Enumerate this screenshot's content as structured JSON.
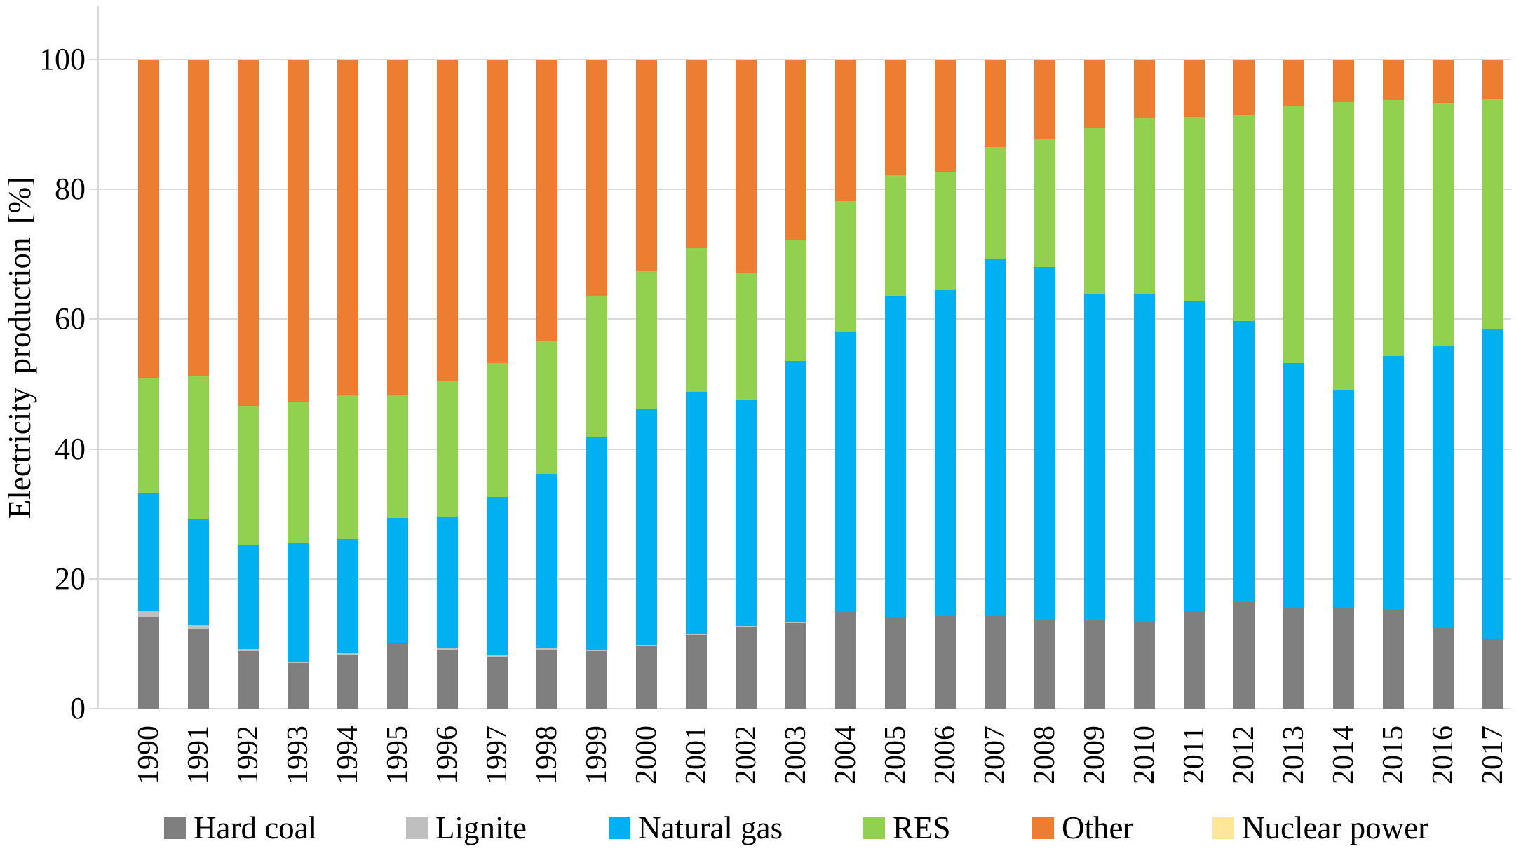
{
  "chart_data": {
    "type": "bar",
    "stacked": true,
    "title": "",
    "xlabel": "",
    "ylabel": "Electricity production [%]",
    "ylim": [
      0,
      100
    ],
    "yticks": [
      0,
      20,
      40,
      60,
      80,
      100
    ],
    "grid": true,
    "legend_position": "bottom",
    "categories": [
      "1990",
      "1991",
      "1992",
      "1993",
      "1994",
      "1995",
      "1996",
      "1997",
      "1998",
      "1999",
      "2000",
      "2001",
      "2002",
      "2003",
      "2004",
      "2005",
      "2006",
      "2007",
      "2008",
      "2009",
      "2010",
      "2011",
      "2012",
      "2013",
      "2014",
      "2015",
      "2016",
      "2017"
    ],
    "series": [
      {
        "name": "Hard coal",
        "color": "#7f7f7f",
        "values": [
          14.2,
          12.3,
          8.9,
          7.0,
          8.3,
          10.0,
          9.1,
          8.0,
          9.1,
          9.0,
          9.7,
          11.3,
          12.6,
          13.2,
          14.9,
          14.2,
          14.3,
          14.3,
          13.6,
          13.6,
          13.3,
          15.0,
          16.4,
          15.6,
          15.6,
          15.3,
          12.4,
          10.8
        ]
      },
      {
        "name": "Lignite",
        "color": "#bfbfbf",
        "values": [
          0.8,
          0.6,
          0.3,
          0.2,
          0.3,
          0.2,
          0.3,
          0.3,
          0.2,
          0.1,
          0.1,
          0.1,
          0.1,
          0.1,
          0,
          0,
          0,
          0,
          0,
          0,
          0,
          0,
          0,
          0,
          0,
          0,
          0,
          0
        ]
      },
      {
        "name": "Natural gas",
        "color": "#00b0f0",
        "values": [
          18.2,
          16.3,
          16.0,
          18.3,
          17.5,
          19.2,
          20.2,
          24.3,
          26.9,
          32.8,
          36.3,
          37.4,
          34.9,
          40.3,
          43.2,
          49.4,
          50.3,
          55.0,
          54.4,
          50.3,
          50.5,
          47.7,
          43.3,
          37.6,
          33.4,
          39.0,
          43.5,
          47.7
        ]
      },
      {
        "name": "RES",
        "color": "#92d050",
        "values": [
          17.8,
          22.0,
          21.5,
          21.7,
          22.3,
          19.0,
          20.8,
          20.6,
          20.4,
          21.7,
          21.4,
          22.2,
          19.5,
          18.5,
          20.1,
          18.6,
          18.1,
          17.3,
          19.8,
          25.5,
          27.1,
          28.5,
          31.8,
          39.7,
          44.5,
          39.5,
          37.4,
          35.5
        ]
      },
      {
        "name": "Other",
        "color": "#ed7d31",
        "values": [
          49.0,
          48.8,
          53.3,
          52.8,
          51.6,
          51.6,
          49.6,
          46.8,
          43.4,
          36.4,
          32.5,
          29.0,
          32.9,
          27.9,
          21.8,
          17.8,
          17.3,
          13.4,
          12.2,
          10.6,
          9.1,
          8.8,
          8.5,
          7.1,
          6.5,
          6.2,
          6.7,
          6.0
        ]
      },
      {
        "name": "Nuclear power",
        "color": "#ffe699",
        "values": [
          0,
          0,
          0,
          0,
          0,
          0,
          0,
          0,
          0,
          0,
          0,
          0,
          0,
          0,
          0,
          0,
          0,
          0,
          0,
          0,
          0,
          0,
          0,
          0,
          0,
          0,
          0,
          0
        ]
      }
    ]
  }
}
